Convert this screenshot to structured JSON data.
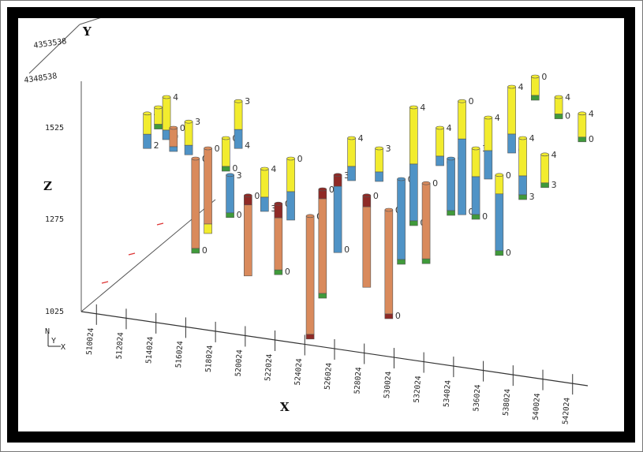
{
  "chart_data": {
    "type": "scatter",
    "axis_labels": {
      "x": "X",
      "y": "Y",
      "z": "Z"
    },
    "z_ticks": [
      "1525",
      "1275",
      "1025"
    ],
    "x_ticks": [
      "510024",
      "512024",
      "514024",
      "516024",
      "518024",
      "520024",
      "522024",
      "524024",
      "526024",
      "528024",
      "530024",
      "532024",
      "534024",
      "536024",
      "538024",
      "540024",
      "542024"
    ],
    "y_ticks": [
      "4353538",
      "4348538"
    ],
    "orientation_labels": {
      "n": "N",
      "y": "Y",
      "x": "X"
    },
    "boreholes": [
      {
        "x": 516500,
        "top": 0.8,
        "segments": [
          [
            "yellow",
            0.3
          ],
          [
            "green",
            0.05
          ]
        ],
        "labels": [
          "0",
          "0"
        ]
      },
      {
        "x": 510800,
        "top": 0.92,
        "segments": [
          [
            "yellow",
            0.22
          ],
          [
            "blue",
            0.15
          ]
        ],
        "labels": [
          "4",
          "2"
        ]
      },
      {
        "x": 511600,
        "top": 0.95,
        "segments": [
          [
            "yellow",
            0.18
          ],
          [
            "green",
            0.05
          ]
        ],
        "labels": [
          "4"
        ]
      },
      {
        "x": 512200,
        "top": 1.0,
        "segments": [
          [
            "yellow",
            0.35
          ],
          [
            "blue",
            0.1
          ]
        ],
        "labels": [
          "4",
          "0"
        ]
      },
      {
        "x": 512700,
        "top": 0.85,
        "segments": [
          [
            "orange",
            0.2
          ],
          [
            "blue",
            0.05
          ]
        ],
        "labels": [
          "0"
        ]
      },
      {
        "x": 513800,
        "top": 0.88,
        "segments": [
          [
            "yellow",
            0.25
          ],
          [
            "blue",
            0.1
          ]
        ],
        "labels": [
          "3"
        ]
      },
      {
        "x": 514300,
        "top": 0.7,
        "segments": [
          [
            "orange",
            0.95
          ],
          [
            "green",
            0.05
          ]
        ],
        "labels": [
          "0",
          "0"
        ]
      },
      {
        "x": 515200,
        "top": 0.75,
        "segments": [
          [
            "orange",
            0.8
          ],
          [
            "yellow",
            0.1
          ]
        ],
        "labels": [
          "0"
        ]
      },
      {
        "x": 516800,
        "top": 0.62,
        "segments": [
          [
            "blue",
            0.4
          ],
          [
            "green",
            0.05
          ]
        ],
        "labels": [
          "3",
          "0"
        ]
      },
      {
        "x": 517400,
        "top": 0.98,
        "segments": [
          [
            "yellow",
            0.3
          ],
          [
            "blue",
            0.2
          ]
        ],
        "labels": [
          "3",
          "4"
        ]
      },
      {
        "x": 518100,
        "top": 0.52,
        "segments": [
          [
            "darkred",
            0.1
          ],
          [
            "orange",
            0.75
          ]
        ],
        "labels": [
          "0"
        ]
      },
      {
        "x": 519300,
        "top": 0.65,
        "segments": [
          [
            "yellow",
            0.3
          ],
          [
            "blue",
            0.15
          ]
        ],
        "labels": [
          "4",
          "3"
        ]
      },
      {
        "x": 520300,
        "top": 0.48,
        "segments": [
          [
            "darkred",
            0.15
          ],
          [
            "orange",
            0.55
          ],
          [
            "green",
            0.05
          ]
        ],
        "labels": [
          "0",
          "0"
        ]
      },
      {
        "x": 521200,
        "top": 0.7,
        "segments": [
          [
            "yellow",
            0.35
          ],
          [
            "blue",
            0.3
          ]
        ],
        "labels": [
          "0"
        ]
      },
      {
        "x": 522600,
        "top": 0.42,
        "segments": [
          [
            "orange",
            1.25
          ],
          [
            "darkred",
            0.05
          ]
        ],
        "labels": [
          "0"
        ]
      },
      {
        "x": 523500,
        "top": 0.55,
        "segments": [
          [
            "darkred",
            0.1
          ],
          [
            "orange",
            1.0
          ],
          [
            "green",
            0.05
          ]
        ],
        "labels": [
          "0"
        ]
      },
      {
        "x": 524600,
        "top": 0.62,
        "segments": [
          [
            "darkred",
            0.12
          ],
          [
            "blue",
            0.7
          ]
        ],
        "labels": [
          "3",
          "0"
        ]
      },
      {
        "x": 525600,
        "top": 0.8,
        "segments": [
          [
            "yellow",
            0.3
          ],
          [
            "blue",
            0.15
          ]
        ],
        "labels": [
          "4"
        ]
      },
      {
        "x": 526700,
        "top": 0.52,
        "segments": [
          [
            "darkred",
            0.12
          ],
          [
            "orange",
            0.85
          ]
        ],
        "labels": [
          "0"
        ]
      },
      {
        "x": 527600,
        "top": 0.75,
        "segments": [
          [
            "yellow",
            0.25
          ],
          [
            "blue",
            0.1
          ]
        ],
        "labels": [
          "3"
        ]
      },
      {
        "x": 528300,
        "top": 0.45,
        "segments": [
          [
            "orange",
            1.1
          ],
          [
            "darkred",
            0.05
          ]
        ],
        "labels": [
          "0",
          "0"
        ]
      },
      {
        "x": 529200,
        "top": 0.6,
        "segments": [
          [
            "blue",
            0.85
          ],
          [
            "green",
            0.05
          ]
        ],
        "labels": [
          "0"
        ]
      },
      {
        "x": 530100,
        "top": 0.95,
        "segments": [
          [
            "yellow",
            0.6
          ],
          [
            "blue",
            0.6
          ],
          [
            "green",
            0.05
          ]
        ],
        "labels": [
          "4",
          "0"
        ]
      },
      {
        "x": 531000,
        "top": 0.58,
        "segments": [
          [
            "orange",
            0.8
          ],
          [
            "green",
            0.05
          ]
        ],
        "labels": [
          "0"
        ]
      },
      {
        "x": 532000,
        "top": 0.85,
        "segments": [
          [
            "yellow",
            0.3
          ],
          [
            "blue",
            0.1
          ]
        ],
        "labels": [
          "4",
          "0"
        ]
      },
      {
        "x": 532800,
        "top": 0.7,
        "segments": [
          [
            "blue",
            0.55
          ],
          [
            "green",
            0.05
          ]
        ],
        "labels": [
          "0"
        ]
      },
      {
        "x": 533600,
        "top": 0.98,
        "segments": [
          [
            "yellow",
            0.4
          ],
          [
            "blue",
            0.8
          ]
        ],
        "labels": [
          "0",
          "0"
        ]
      },
      {
        "x": 534600,
        "top": 0.75,
        "segments": [
          [
            "yellow",
            0.3
          ],
          [
            "blue",
            0.4
          ],
          [
            "green",
            0.05
          ]
        ],
        "labels": [
          "3",
          "0"
        ]
      },
      {
        "x": 535500,
        "top": 0.9,
        "segments": [
          [
            "yellow",
            0.35
          ],
          [
            "blue",
            0.3
          ]
        ],
        "labels": [
          "4"
        ]
      },
      {
        "x": 536300,
        "top": 0.62,
        "segments": [
          [
            "yellow",
            0.2
          ],
          [
            "blue",
            0.6
          ],
          [
            "green",
            0.05
          ]
        ],
        "labels": [
          "0",
          "0"
        ]
      },
      {
        "x": 537200,
        "top": 1.05,
        "segments": [
          [
            "yellow",
            0.5
          ],
          [
            "blue",
            0.2
          ]
        ],
        "labels": [
          "4",
          "0"
        ]
      },
      {
        "x": 538000,
        "top": 0.8,
        "segments": [
          [
            "yellow",
            0.4
          ],
          [
            "blue",
            0.2
          ],
          [
            "green",
            0.05
          ]
        ],
        "labels": [
          "4",
          "3"
        ]
      },
      {
        "x": 538900,
        "top": 1.1,
        "segments": [
          [
            "yellow",
            0.2
          ],
          [
            "green",
            0.05
          ]
        ],
        "labels": [
          "0"
        ]
      },
      {
        "x": 539600,
        "top": 0.72,
        "segments": [
          [
            "yellow",
            0.3
          ],
          [
            "green",
            0.05
          ]
        ],
        "labels": [
          "4",
          "3"
        ]
      },
      {
        "x": 540600,
        "top": 1.0,
        "segments": [
          [
            "yellow",
            0.18
          ],
          [
            "green",
            0.05
          ]
        ],
        "labels": [
          "4",
          "0"
        ]
      },
      {
        "x": 542300,
        "top": 0.92,
        "segments": [
          [
            "yellow",
            0.25
          ],
          [
            "green",
            0.05
          ]
        ],
        "labels": [
          "4",
          "0"
        ]
      }
    ],
    "colors": {
      "yellow": "#f2ec2e",
      "green": "#3f9a3a",
      "blue": "#4f93c6",
      "orange": "#d98a5c",
      "darkred": "#8f2a26",
      "axis": "#333333"
    }
  }
}
